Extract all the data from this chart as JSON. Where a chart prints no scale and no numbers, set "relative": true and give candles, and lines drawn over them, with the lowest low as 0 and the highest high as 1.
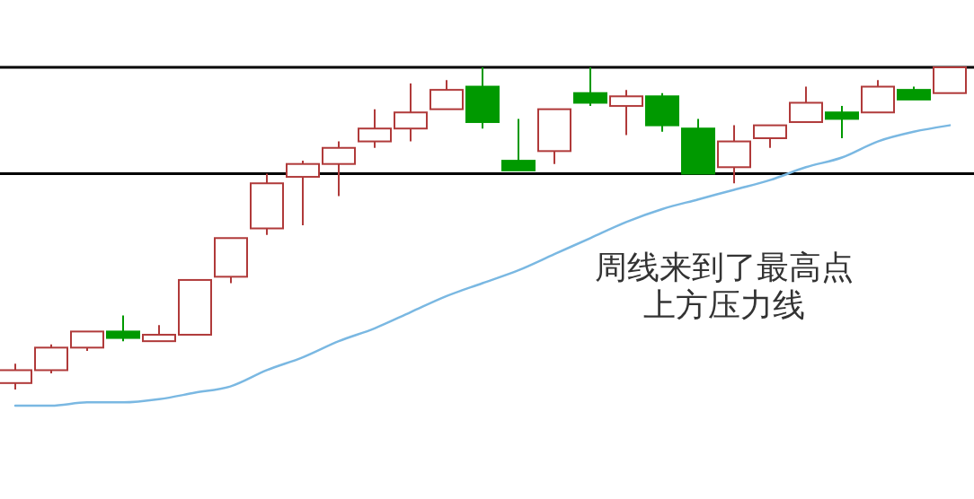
{
  "chart_data": {
    "type": "candlestick",
    "relative": true,
    "categories": [
      null,
      null,
      null,
      null,
      null,
      null,
      null,
      null,
      null,
      null,
      null,
      null,
      null,
      null,
      null,
      null,
      null,
      null,
      null,
      null,
      null,
      null,
      null,
      null,
      null,
      null,
      null
    ],
    "series": [
      {
        "type": "line",
        "color": "#7ab8e2",
        "values": [
          -0.05,
          -0.05,
          -0.04,
          -0.04,
          -0.03,
          -0.01,
          0.01,
          0.06,
          0.1,
          0.15,
          0.19,
          0.24,
          0.29,
          0.33,
          0.37,
          0.42,
          0.47,
          0.52,
          0.56,
          0.59,
          0.62,
          0.65,
          0.69,
          0.72,
          0.77,
          0.8,
          0.82
        ]
      },
      {
        "colors": [
          "#b03a3a",
          "#b03a3a",
          "#b03a3a",
          "#009900",
          "#b03a3a",
          "#b03a3a",
          "#b03a3a",
          "#b03a3a",
          "#b03a3a",
          "#b03a3a",
          "#b03a3a",
          "#b03a3a",
          "#b03a3a",
          "#009900",
          "#009900",
          "#b03a3a",
          "#009900",
          "#b03a3a",
          "#009900",
          "#009900",
          "#b03a3a",
          "#b03a3a",
          "#b03a3a",
          "#009900",
          "#b03a3a",
          "#009900",
          "#b03a3a"
        ],
        "ohlc": [
          [
            0.02,
            0.08,
            0,
            0.06
          ],
          [
            0.06,
            0.14,
            0.05,
            0.13
          ],
          [
            0.13,
            0.18,
            0.12,
            0.18
          ],
          [
            0.18,
            0.23,
            0.15,
            0.16
          ],
          [
            0.15,
            0.2,
            0.15,
            0.17
          ],
          [
            0.17,
            0.34,
            0.17,
            0.34
          ],
          [
            0.35,
            0.47,
            0.33,
            0.47
          ],
          [
            0.5,
            0.67,
            0.48,
            0.64
          ],
          [
            0.66,
            0.71,
            0.51,
            0.7
          ],
          [
            0.7,
            0.77,
            0.6,
            0.75
          ],
          [
            0.77,
            0.87,
            0.75,
            0.81
          ],
          [
            0.81,
            0.95,
            0.77,
            0.86
          ],
          [
            0.87,
            0.96,
            0.87,
            0.93
          ],
          [
            0.94,
            1.0,
            0.81,
            0.83
          ],
          [
            0.71,
            0.84,
            0.68,
            0.68
          ],
          [
            0.74,
            0.87,
            0.7,
            0.87
          ],
          [
            0.92,
            1.0,
            0.88,
            0.89
          ],
          [
            0.88,
            0.93,
            0.79,
            0.91
          ],
          [
            0.91,
            0.92,
            0.8,
            0.82
          ],
          [
            0.81,
            0.84,
            0.67,
            0.67
          ],
          [
            0.69,
            0.82,
            0.64,
            0.77
          ],
          [
            0.78,
            0.82,
            0.75,
            0.82
          ],
          [
            0.83,
            0.94,
            0.83,
            0.89
          ],
          [
            0.86,
            0.88,
            0.78,
            0.84
          ],
          [
            0.86,
            0.96,
            0.86,
            0.94
          ],
          [
            0.93,
            0.94,
            0.9,
            0.9
          ],
          [
            0.92,
            1.0,
            0.92,
            1.0
          ]
        ]
      }
    ],
    "ref_lines": [
      {
        "axis": "y",
        "value": 1.0,
        "color": "#000000"
      },
      {
        "axis": "y",
        "value": 0.67,
        "color": "#000000"
      }
    ],
    "annotations": [
      "周线来到了最高点",
      "上方压力线"
    ]
  }
}
